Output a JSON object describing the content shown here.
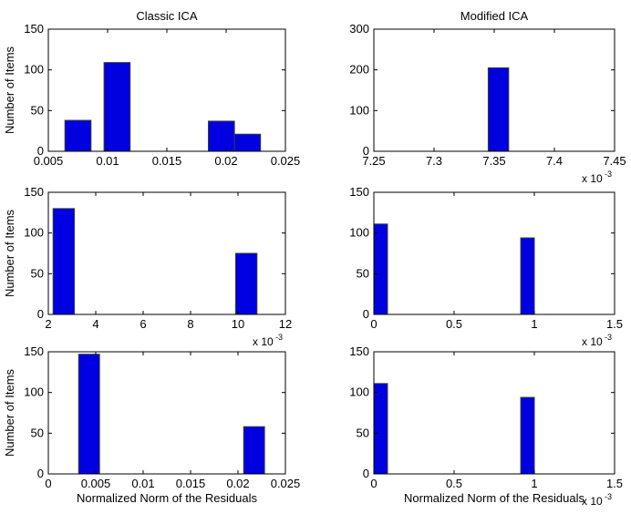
{
  "colors": {
    "bar_fill": "#0000e0",
    "bar_edge": "#3a3a3a",
    "axes": "#000000",
    "background": "#ffffff"
  },
  "chart_data": [
    {
      "type": "bar",
      "title": "Classic ICA",
      "xlabel": "",
      "ylabel": "Number of Items",
      "xlim": [
        0.005,
        0.025
      ],
      "ylim": [
        0,
        150
      ],
      "xticks": [
        "0.005",
        "0.01",
        "0.015",
        "0.02",
        "0.025"
      ],
      "yticks": [
        "0",
        "50",
        "100",
        "150"
      ],
      "x_exponent": "",
      "grid": false,
      "bars": [
        {
          "x0": 0.0064,
          "x1": 0.0086,
          "value": 38
        },
        {
          "x0": 0.0097,
          "x1": 0.0119,
          "value": 109
        },
        {
          "x0": 0.0185,
          "x1": 0.0207,
          "value": 37
        },
        {
          "x0": 0.0207,
          "x1": 0.0229,
          "value": 21
        }
      ]
    },
    {
      "type": "bar",
      "title": "Modified ICA",
      "xlabel": "",
      "ylabel": "",
      "xlim": [
        7.25,
        7.45
      ],
      "ylim": [
        0,
        300
      ],
      "xticks": [
        "7.25",
        "7.3",
        "7.35",
        "7.4",
        "7.45"
      ],
      "yticks": [
        "0",
        "100",
        "200",
        "300"
      ],
      "x_exponent": "x 10",
      "x_exponent_power": "-3",
      "grid": false,
      "bars": [
        {
          "x0": 7.345,
          "x1": 7.362,
          "value": 205
        }
      ]
    },
    {
      "type": "bar",
      "title": "",
      "xlabel": "",
      "ylabel": "Number of Items",
      "xlim": [
        2,
        12
      ],
      "ylim": [
        0,
        150
      ],
      "xticks": [
        "2",
        "4",
        "6",
        "8",
        "10",
        "12"
      ],
      "yticks": [
        "0",
        "50",
        "100",
        "150"
      ],
      "x_exponent": "x 10",
      "x_exponent_power": "-3",
      "grid": false,
      "bars": [
        {
          "x0": 2.2,
          "x1": 3.1,
          "value": 130
        },
        {
          "x0": 9.9,
          "x1": 10.8,
          "value": 75
        }
      ]
    },
    {
      "type": "bar",
      "title": "",
      "xlabel": "",
      "ylabel": "",
      "xlim": [
        0,
        1.5
      ],
      "ylim": [
        0,
        150
      ],
      "xticks": [
        "0",
        "0.5",
        "1",
        "1.5"
      ],
      "yticks": [
        "0",
        "50",
        "100",
        "150"
      ],
      "x_exponent": "x 10",
      "x_exponent_power": "-3",
      "grid": false,
      "bars": [
        {
          "x0": 0.0,
          "x1": 0.085,
          "value": 111
        },
        {
          "x0": 0.915,
          "x1": 1.0,
          "value": 94
        }
      ]
    },
    {
      "type": "bar",
      "title": "",
      "xlabel": "Normalized Norm of the Residuals",
      "ylabel": "Number of Items",
      "xlim": [
        0,
        0.025
      ],
      "ylim": [
        0,
        150
      ],
      "xticks": [
        "0",
        "0.005",
        "0.01",
        "0.015",
        "0.02",
        "0.025"
      ],
      "yticks": [
        "0",
        "50",
        "100",
        "150"
      ],
      "x_exponent": "",
      "grid": false,
      "bars": [
        {
          "x0": 0.0032,
          "x1": 0.0054,
          "value": 147
        },
        {
          "x0": 0.0206,
          "x1": 0.0228,
          "value": 58
        }
      ]
    },
    {
      "type": "bar",
      "title": "",
      "xlabel": "Normalized Norm of the Residuals",
      "ylabel": "",
      "xlim": [
        0,
        1.5
      ],
      "ylim": [
        0,
        150
      ],
      "xticks": [
        "0",
        "0.5",
        "1",
        "1.5"
      ],
      "yticks": [
        "0",
        "50",
        "100",
        "150"
      ],
      "x_exponent": "x 10",
      "x_exponent_power": "-3",
      "grid": false,
      "bars": [
        {
          "x0": 0.0,
          "x1": 0.085,
          "value": 111
        },
        {
          "x0": 0.915,
          "x1": 1.0,
          "value": 94
        }
      ]
    }
  ]
}
